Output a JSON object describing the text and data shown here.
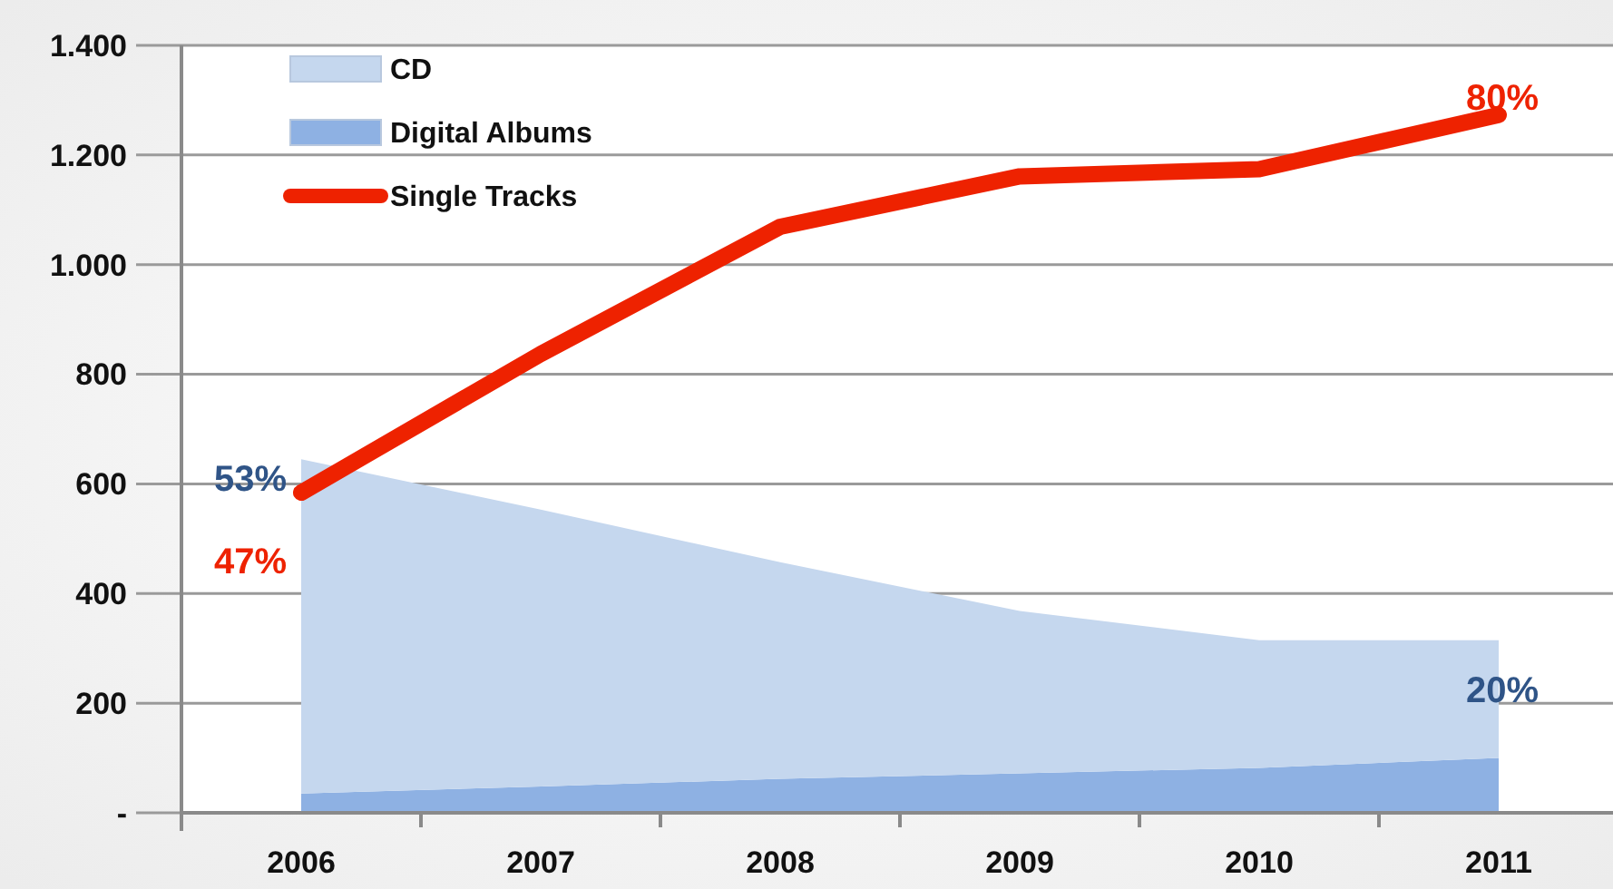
{
  "chart_data": {
    "type": "area",
    "stacked": true,
    "categories": [
      "2006",
      "2007",
      "2008",
      "2009",
      "2010",
      "2011"
    ],
    "series": [
      {
        "name": "Digital Albums",
        "color": "#8eb1e3",
        "values": [
          35,
          48,
          62,
          72,
          82,
          100
        ]
      },
      {
        "name": "CD",
        "color": "#c5d7ee",
        "values": [
          610,
          505,
          395,
          296,
          233,
          215
        ]
      },
      {
        "name": "Single Tracks",
        "type": "line",
        "color": "#ee2200",
        "values": [
          584,
          837,
          1069,
          1161,
          1174,
          1273
        ]
      }
    ],
    "ylim": [
      0,
      1400
    ],
    "yticks": [
      {
        "value": 0,
        "label": "-"
      },
      {
        "value": 200,
        "label": "200"
      },
      {
        "value": 400,
        "label": "400"
      },
      {
        "value": 600,
        "label": "600"
      },
      {
        "value": 800,
        "label": "800"
      },
      {
        "value": 1000,
        "label": "1.000"
      },
      {
        "value": 1200,
        "label": "1.200"
      },
      {
        "value": 1400,
        "label": "1.400"
      }
    ],
    "grid": "y",
    "legend": "top left",
    "line_style": "solid",
    "marker": "none",
    "annotations": [
      "53%",
      "47%",
      "80%",
      "20%"
    ]
  }
}
